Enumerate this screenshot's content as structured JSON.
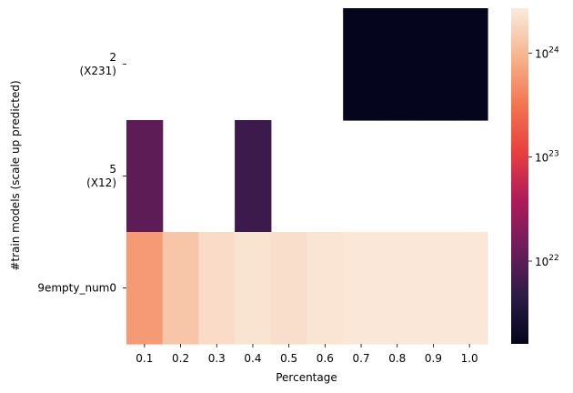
{
  "chart_data": {
    "type": "heatmap",
    "xlabel": "Percentage",
    "ylabel": "#train models (scale up predicted)",
    "x": [
      "0.1",
      "0.2",
      "0.3",
      "0.4",
      "0.5",
      "0.6",
      "0.7",
      "0.8",
      "0.9",
      "1.0"
    ],
    "rows": [
      {
        "label_lines": [
          "2",
          "(X231)"
        ],
        "values": [
          null,
          null,
          null,
          null,
          null,
          null,
          1.7e+21,
          1.7e+21,
          1.7e+21,
          1.7e+21
        ]
      },
      {
        "label_lines": [
          "5",
          "(X12)"
        ],
        "values": [
          1e+22,
          null,
          null,
          6e+21,
          null,
          null,
          null,
          null,
          null,
          null
        ]
      },
      {
        "label_lines": [
          "9empty_num0"
        ],
        "values": [
          6e+23,
          1.3e+24,
          2e+24,
          2.3e+24,
          2.1e+24,
          2.4e+24,
          2.5e+24,
          2.5e+24,
          2.5e+24,
          2.5e+24
        ]
      }
    ],
    "colorbar": {
      "scale": "log",
      "range": [
        1.6e+21,
        2.7e+24
      ],
      "ticks": [
        {
          "value": 1e+22,
          "base": "10",
          "exp": "22"
        },
        {
          "value": 1e+23,
          "base": "10",
          "exp": "23"
        },
        {
          "value": 1e+24,
          "base": "10",
          "exp": "24"
        }
      ],
      "colormap": "rocket",
      "colors": [
        "#03051a",
        "#2c1b47",
        "#6f1d5a",
        "#b01a59",
        "#e83f3f",
        "#f37651",
        "#f6b48f",
        "#faebdd"
      ]
    },
    "grid": false,
    "legend": "colorbar-right"
  }
}
